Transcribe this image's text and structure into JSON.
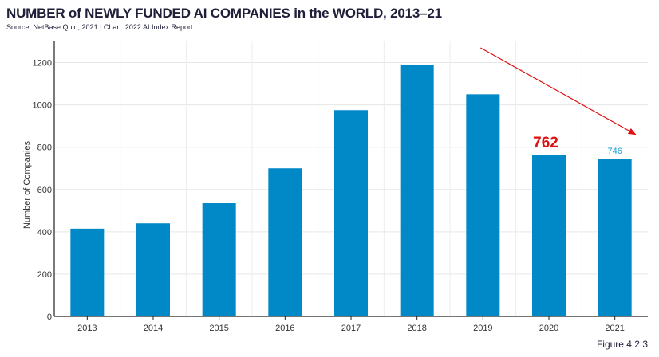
{
  "title": "NUMBER of NEWLY FUNDED AI COMPANIES in the WORLD, 2013–21",
  "subtitle": "Source: NetBase Quid, 2021 | Chart: 2022 AI Index Report",
  "figure_label": "Figure 4.2.3",
  "chart_data": {
    "type": "bar",
    "title": "NUMBER of NEWLY FUNDED AI COMPANIES in the WORLD, 2013–21",
    "xlabel": "",
    "ylabel": "Number of Companies",
    "categories": [
      "2013",
      "2014",
      "2015",
      "2016",
      "2017",
      "2018",
      "2019",
      "2020",
      "2021"
    ],
    "values": [
      415,
      440,
      535,
      700,
      975,
      1190,
      1050,
      762,
      746
    ],
    "ylim": [
      0,
      1300
    ],
    "yticks": [
      0,
      200,
      400,
      600,
      800,
      1000,
      1200
    ],
    "grid": true,
    "bar_color": "#0088c7",
    "data_labels": [
      {
        "category": "2021",
        "text": "746",
        "color": "#1a9fd8"
      }
    ],
    "annotations": [
      {
        "category": "2020",
        "text": "762",
        "color": "#e01010"
      }
    ],
    "trend_arrow": {
      "from_category": "2019",
      "to_category": "2021",
      "color": "#e01010"
    }
  }
}
